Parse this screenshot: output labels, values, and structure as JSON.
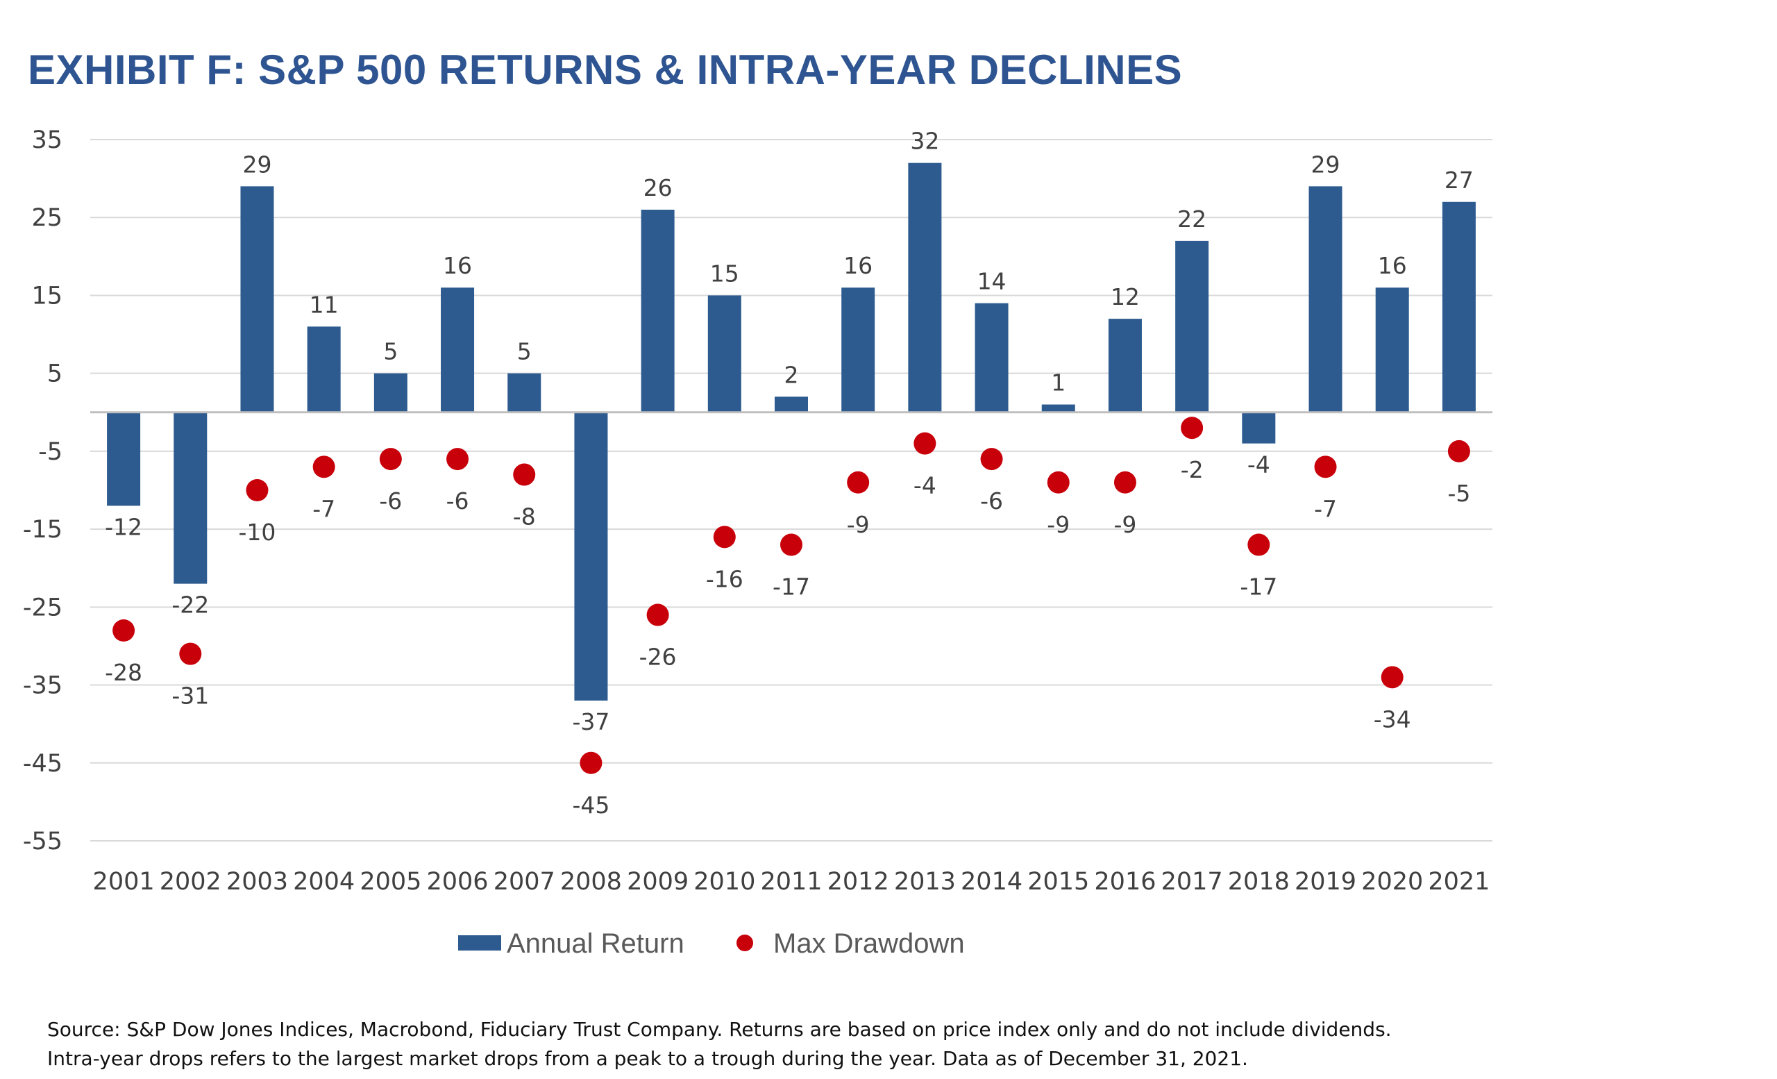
{
  "title": "EXHIBIT F: S&P 500 RETURNS & INTRA-YEAR DECLINES",
  "colors": {
    "title": "#2e5591",
    "bar": "#2d5b8f",
    "dot": "#c8000a",
    "grid": "#d9d9d9"
  },
  "chart_data": {
    "type": "bar",
    "categories": [
      "2001",
      "2002",
      "2003",
      "2004",
      "2005",
      "2006",
      "2007",
      "2008",
      "2009",
      "2010",
      "2011",
      "2012",
      "2013",
      "2014",
      "2015",
      "2016",
      "2017",
      "2018",
      "2019",
      "2020",
      "2021"
    ],
    "series": [
      {
        "name": "Annual Return",
        "type": "bar",
        "values": [
          -12,
          -22,
          29,
          11,
          5,
          16,
          5,
          -37,
          26,
          15,
          2,
          16,
          32,
          14,
          1,
          12,
          22,
          -4,
          29,
          16,
          27
        ]
      },
      {
        "name": "Max Drawdown",
        "type": "scatter",
        "values": [
          -28,
          -31,
          -10,
          -7,
          -6,
          -6,
          -8,
          -45,
          -26,
          -16,
          -17,
          -9,
          -4,
          -6,
          -9,
          -9,
          -2,
          -17,
          -7,
          -34,
          -5
        ]
      }
    ],
    "yticks": [
      "35",
      "25",
      "15",
      "5",
      "-5",
      "-15",
      "-25",
      "-35",
      "-45",
      "-55"
    ],
    "ylim": [
      -55,
      35
    ],
    "grid": true,
    "legend": "bottom"
  },
  "source_lines": [
    "Source: S&P Dow Jones Indices, Macrobond, Fiduciary Trust Company. Returns are based on price index only and do not include dividends.",
    "Intra-year drops refers to the largest market drops from a peak to a trough during the year. Data as of December 31, 2021."
  ]
}
